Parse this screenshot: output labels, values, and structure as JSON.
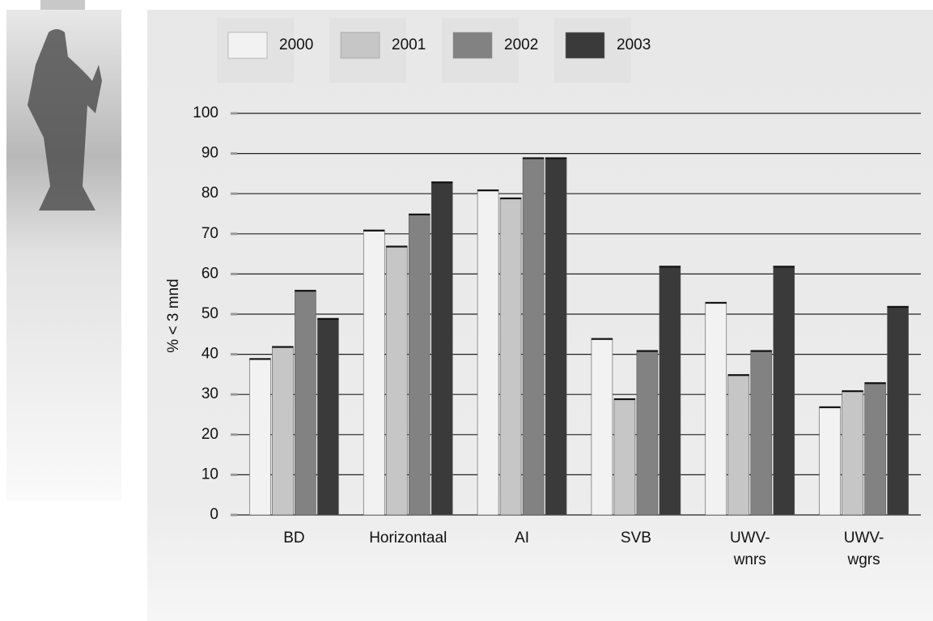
{
  "chart_data": {
    "type": "bar",
    "y_label": "% < 3 mnd",
    "categories": [
      "BD",
      "Horizontaal",
      "AI",
      "SVB",
      "UWV-\nwnrs",
      "UWV-\nwgrs"
    ],
    "series": [
      {
        "name": "2000",
        "color": "#f2f2f2",
        "values": [
          39,
          71,
          81,
          44,
          53,
          27
        ]
      },
      {
        "name": "2001",
        "color": "#c6c6c6",
        "values": [
          42,
          67,
          79,
          29,
          35,
          31
        ]
      },
      {
        "name": "2002",
        "color": "#828282",
        "values": [
          56,
          75,
          89,
          41,
          41,
          33
        ]
      },
      {
        "name": "2003",
        "color": "#3a3a3a",
        "values": [
          49,
          83,
          89,
          62,
          62,
          52
        ]
      }
    ],
    "ylim": [
      0,
      100
    ],
    "yticks": [
      0,
      10,
      20,
      30,
      40,
      50,
      60,
      70,
      80,
      90,
      100
    ],
    "grid": true,
    "legend": "top"
  }
}
